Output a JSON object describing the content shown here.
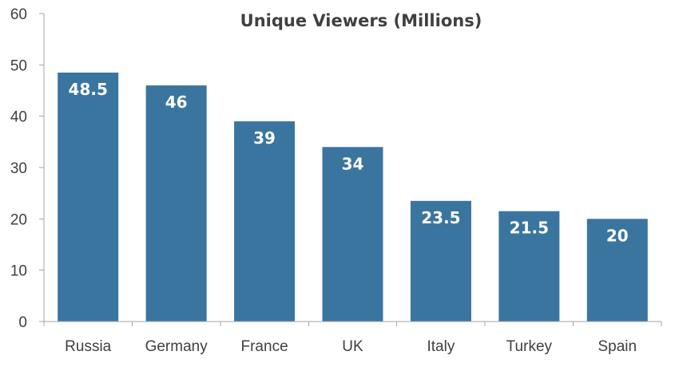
{
  "chart_data": {
    "type": "bar",
    "title": "Unique Viewers (Millions)",
    "xlabel": "",
    "ylabel": "",
    "categories": [
      "Russia",
      "Germany",
      "France",
      "UK",
      "Italy",
      "Turkey",
      "Spain"
    ],
    "values": [
      48.5,
      46,
      39,
      34,
      23.5,
      21.5,
      20
    ],
    "data_labels": [
      "48.5",
      "46",
      "39",
      "34",
      "23.5",
      "21.5",
      "20"
    ],
    "ylim": [
      0,
      60
    ],
    "yticks": [
      0,
      10,
      20,
      30,
      40,
      50,
      60
    ],
    "ytick_labels": [
      "0",
      "10",
      "20",
      "30",
      "40",
      "50",
      "60"
    ],
    "grid": false,
    "legend": "none",
    "bar_color": "#3a75a0",
    "axis_color": "#a6a6a6",
    "text_color": "#404040"
  }
}
